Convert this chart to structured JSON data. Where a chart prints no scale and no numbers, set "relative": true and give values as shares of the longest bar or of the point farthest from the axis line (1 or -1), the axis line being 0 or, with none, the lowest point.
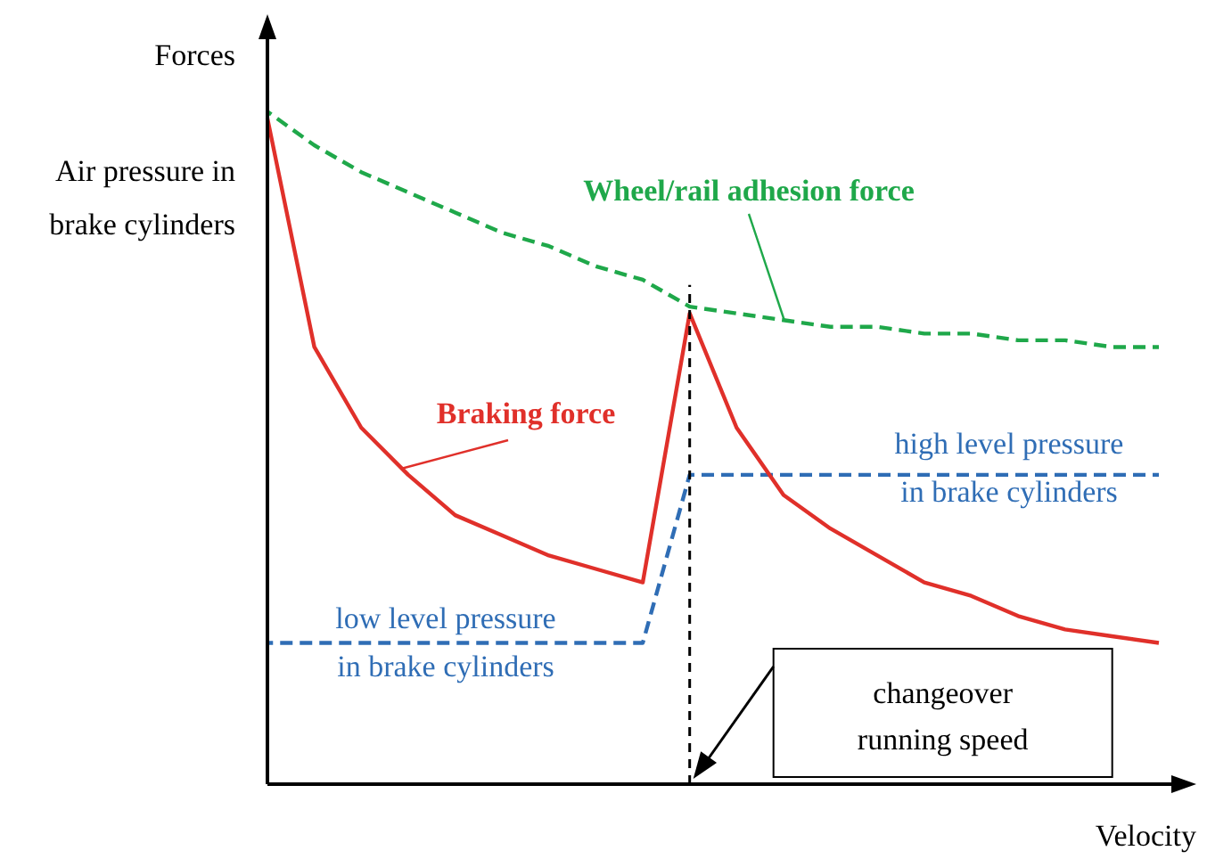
{
  "chart_data": {
    "type": "line",
    "relative": true,
    "ylabel": "Forces",
    "xlabel": "Velocity",
    "marker": "none",
    "categories": [
      null,
      null,
      null,
      null,
      null,
      null,
      null,
      null,
      null,
      null,
      null,
      null,
      null,
      null,
      null,
      null,
      null,
      null,
      null,
      null
    ],
    "series": [
      {
        "name": "Wheel/rail adhesion force",
        "color": "#1fa84a",
        "line_style": "dashed",
        "values": [
          1.0,
          0.95,
          0.91,
          0.88,
          0.85,
          0.82,
          0.8,
          0.77,
          0.75,
          0.71,
          0.7,
          0.69,
          0.68,
          0.68,
          0.67,
          0.67,
          0.66,
          0.66,
          0.65,
          0.65
        ]
      },
      {
        "name": "Braking force",
        "color": "#e0302a",
        "line_style": "solid",
        "values": [
          0.99,
          0.65,
          0.53,
          0.46,
          0.4,
          0.37,
          0.34,
          0.32,
          0.3,
          0.7,
          0.53,
          0.43,
          0.38,
          0.34,
          0.3,
          0.28,
          0.25,
          0.23,
          0.22,
          0.21
        ]
      },
      {
        "color": "#2f6db5",
        "line_style": "dashed",
        "values": [
          0.21,
          0.21,
          0.21,
          0.21,
          0.21,
          0.21,
          0.21,
          0.21,
          0.21,
          0.46,
          0.46,
          0.46,
          0.46,
          0.46,
          0.46,
          0.46,
          0.46,
          0.46,
          0.46,
          0.46
        ]
      }
    ],
    "annotations": [
      "Air pressure in\nbrake cylinders",
      "low level pressure\nin brake cylinders",
      "high level pressure\nin brake cylinders",
      "changeover\nrunning speed"
    ]
  }
}
